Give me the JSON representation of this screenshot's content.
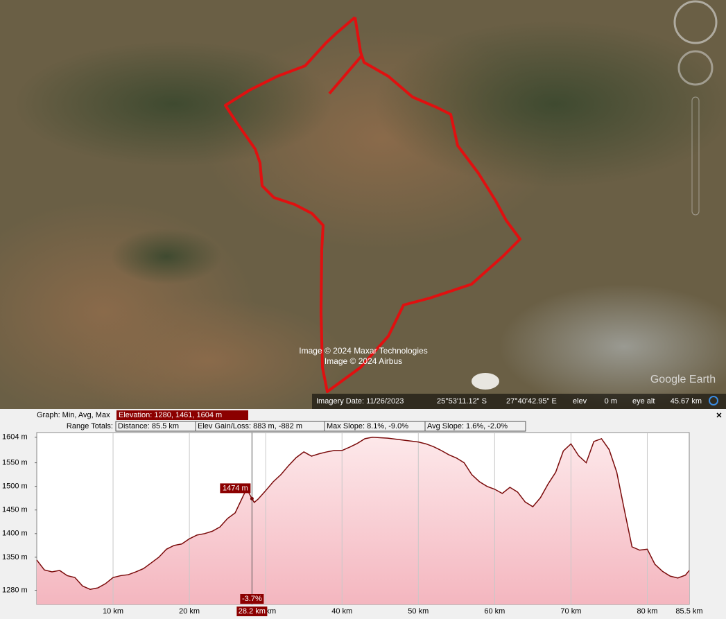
{
  "map": {
    "credit_1": "Image © 2024 Maxar Technologies",
    "credit_2": "Image © 2024 Airbus",
    "logo": "Google Earth"
  },
  "status_bar": {
    "imagery_date": "Imagery Date: 11/26/2023",
    "latitude": "25°53'11.12\" S",
    "longitude": "27°40'42.95\" E",
    "elev_label": "elev",
    "elev_value": "0 m",
    "eye_alt_label": "eye alt",
    "eye_alt_value": "45.67 km"
  },
  "graph_header": {
    "graph_label": "Graph: Min, Avg, Max",
    "elevation": "Elevation: 1280, 1461, 1604 m",
    "range_label": "Range Totals:",
    "distance": "Distance: 85.5 km",
    "gain_loss": "Elev Gain/Loss: 883 m, -882 m",
    "max_slope": "Max Slope: 8.1%, -9.0%",
    "avg_slope": "Avg Slope: 1.6%, -2.0%",
    "close": "×"
  },
  "chart_data": {
    "type": "area",
    "color": "#7a0a0a",
    "fill": "#f7c9cf",
    "xlim": [
      0,
      85.5
    ],
    "ylim": [
      1250,
      1614
    ],
    "xticks": [
      {
        "value": 10,
        "label": "10 km"
      },
      {
        "value": 20,
        "label": "20 km"
      },
      {
        "value": 30,
        "label": "30 km"
      },
      {
        "value": 40,
        "label": "40 km"
      },
      {
        "value": 50,
        "label": "50 km"
      },
      {
        "value": 60,
        "label": "60 km"
      },
      {
        "value": 70,
        "label": "70 km"
      },
      {
        "value": 80,
        "label": "80 km"
      },
      {
        "value": 85.5,
        "label": "85.5 km"
      }
    ],
    "yticks": [
      {
        "value": 1280,
        "label": "1280 m"
      },
      {
        "value": 1350,
        "label": "1350 m"
      },
      {
        "value": 1400,
        "label": "1400 m"
      },
      {
        "value": 1450,
        "label": "1450 m"
      },
      {
        "value": 1500,
        "label": "1500 m"
      },
      {
        "value": 1550,
        "label": "1550 m"
      },
      {
        "value": 1604,
        "label": "1604 m"
      }
    ],
    "x": [
      0,
      1,
      2,
      3,
      4,
      5,
      6,
      7,
      8,
      9,
      10,
      11,
      12,
      13,
      14,
      15,
      16,
      17,
      18,
      19,
      20,
      21,
      22,
      23,
      24,
      25,
      26,
      27.5,
      28.2,
      28.5,
      29,
      30,
      31,
      32,
      33,
      34,
      35,
      36,
      37,
      38,
      39,
      40,
      41,
      42,
      43,
      44,
      45,
      46,
      47,
      48,
      49,
      50,
      51,
      52,
      53,
      54,
      55,
      56,
      57,
      58,
      59,
      60,
      61,
      62,
      63,
      64,
      65,
      66,
      67,
      68,
      69,
      70,
      71,
      72,
      73,
      74,
      75,
      76,
      77,
      78,
      79,
      80,
      81,
      82,
      83,
      84,
      85,
      85.5
    ],
    "values": [
      1344,
      1323,
      1319,
      1322,
      1311,
      1307,
      1289,
      1282,
      1285,
      1294,
      1307,
      1311,
      1313,
      1319,
      1326,
      1338,
      1350,
      1367,
      1375,
      1378,
      1389,
      1397,
      1400,
      1405,
      1414,
      1432,
      1444,
      1495,
      1474,
      1466,
      1473,
      1491,
      1510,
      1525,
      1544,
      1561,
      1573,
      1564,
      1569,
      1573,
      1576,
      1576,
      1583,
      1591,
      1601,
      1604,
      1603,
      1602,
      1600,
      1598,
      1596,
      1594,
      1590,
      1584,
      1576,
      1567,
      1560,
      1550,
      1525,
      1510,
      1500,
      1494,
      1485,
      1498,
      1488,
      1467,
      1457,
      1476,
      1505,
      1530,
      1575,
      1590,
      1565,
      1550,
      1595,
      1601,
      1578,
      1530,
      1450,
      1372,
      1365,
      1367,
      1335,
      1320,
      1310,
      1306,
      1312,
      1322
    ],
    "cursor": {
      "x": {
        "value": 28.2,
        "label": "28.2 km"
      },
      "elevation": {
        "value": 1474,
        "label": "1474 m"
      },
      "slope": {
        "value": -3.7,
        "label": "-3.7%"
      }
    }
  }
}
